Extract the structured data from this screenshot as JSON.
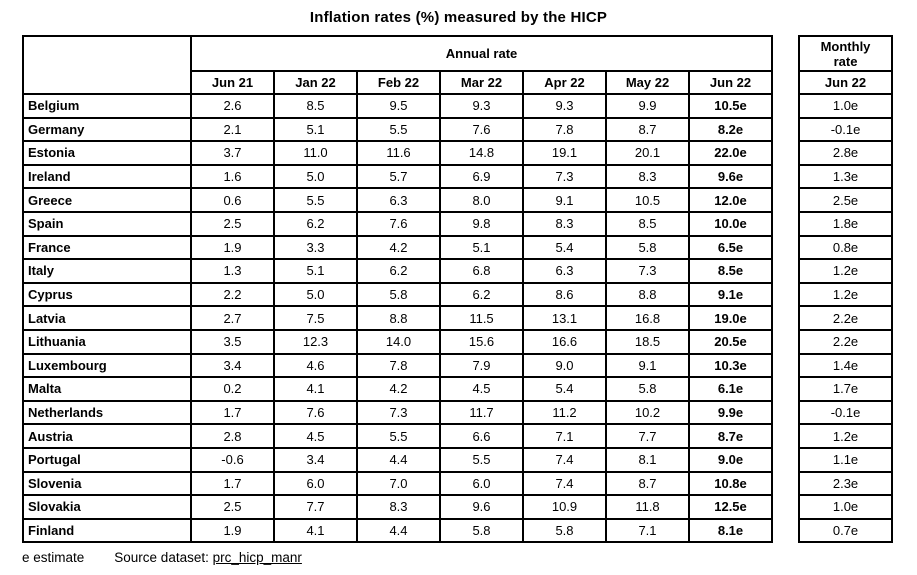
{
  "title": "Inflation rates (%) measured by the HICP",
  "chart_data": {
    "type": "table",
    "title": "Inflation rates (%) measured by the HICP",
    "annual_group_label": "Annual rate",
    "monthly_group_label": "Monthly rate",
    "annual_columns": [
      "Jun 21",
      "Jan 22",
      "Feb 22",
      "Mar 22",
      "Apr 22",
      "May 22",
      "Jun 22"
    ],
    "monthly_column": "Jun 22",
    "rows": [
      {
        "country": "Belgium",
        "annual": [
          "2.6",
          "8.5",
          "9.5",
          "9.3",
          "9.3",
          "9.9",
          "10.5e"
        ],
        "monthly": "1.0e"
      },
      {
        "country": "Germany",
        "annual": [
          "2.1",
          "5.1",
          "5.5",
          "7.6",
          "7.8",
          "8.7",
          "8.2e"
        ],
        "monthly": "-0.1e"
      },
      {
        "country": "Estonia",
        "annual": [
          "3.7",
          "11.0",
          "11.6",
          "14.8",
          "19.1",
          "20.1",
          "22.0e"
        ],
        "monthly": "2.8e"
      },
      {
        "country": "Ireland",
        "annual": [
          "1.6",
          "5.0",
          "5.7",
          "6.9",
          "7.3",
          "8.3",
          "9.6e"
        ],
        "monthly": "1.3e"
      },
      {
        "country": "Greece",
        "annual": [
          "0.6",
          "5.5",
          "6.3",
          "8.0",
          "9.1",
          "10.5",
          "12.0e"
        ],
        "monthly": "2.5e"
      },
      {
        "country": "Spain",
        "annual": [
          "2.5",
          "6.2",
          "7.6",
          "9.8",
          "8.3",
          "8.5",
          "10.0e"
        ],
        "monthly": "1.8e"
      },
      {
        "country": "France",
        "annual": [
          "1.9",
          "3.3",
          "4.2",
          "5.1",
          "5.4",
          "5.8",
          "6.5e"
        ],
        "monthly": "0.8e"
      },
      {
        "country": "Italy",
        "annual": [
          "1.3",
          "5.1",
          "6.2",
          "6.8",
          "6.3",
          "7.3",
          "8.5e"
        ],
        "monthly": "1.2e"
      },
      {
        "country": "Cyprus",
        "annual": [
          "2.2",
          "5.0",
          "5.8",
          "6.2",
          "8.6",
          "8.8",
          "9.1e"
        ],
        "monthly": "1.2e"
      },
      {
        "country": "Latvia",
        "annual": [
          "2.7",
          "7.5",
          "8.8",
          "11.5",
          "13.1",
          "16.8",
          "19.0e"
        ],
        "monthly": "2.2e"
      },
      {
        "country": "Lithuania",
        "annual": [
          "3.5",
          "12.3",
          "14.0",
          "15.6",
          "16.6",
          "18.5",
          "20.5e"
        ],
        "monthly": "2.2e"
      },
      {
        "country": "Luxembourg",
        "annual": [
          "3.4",
          "4.6",
          "7.8",
          "7.9",
          "9.0",
          "9.1",
          "10.3e"
        ],
        "monthly": "1.4e"
      },
      {
        "country": "Malta",
        "annual": [
          "0.2",
          "4.1",
          "4.2",
          "4.5",
          "5.4",
          "5.8",
          "6.1e"
        ],
        "monthly": "1.7e"
      },
      {
        "country": "Netherlands",
        "annual": [
          "1.7",
          "7.6",
          "7.3",
          "11.7",
          "11.2",
          "10.2",
          "9.9e"
        ],
        "monthly": "-0.1e"
      },
      {
        "country": "Austria",
        "annual": [
          "2.8",
          "4.5",
          "5.5",
          "6.6",
          "7.1",
          "7.7",
          "8.7e"
        ],
        "monthly": "1.2e"
      },
      {
        "country": "Portugal",
        "annual": [
          "-0.6",
          "3.4",
          "4.4",
          "5.5",
          "7.4",
          "8.1",
          "9.0e"
        ],
        "monthly": "1.1e"
      },
      {
        "country": "Slovenia",
        "annual": [
          "1.7",
          "6.0",
          "7.0",
          "6.0",
          "7.4",
          "8.7",
          "10.8e"
        ],
        "monthly": "2.3e"
      },
      {
        "country": "Slovakia",
        "annual": [
          "2.5",
          "7.7",
          "8.3",
          "9.6",
          "10.9",
          "11.8",
          "12.5e"
        ],
        "monthly": "1.0e"
      },
      {
        "country": "Finland",
        "annual": [
          "1.9",
          "4.1",
          "4.4",
          "5.8",
          "5.8",
          "7.1",
          "8.1e"
        ],
        "monthly": "0.7e"
      }
    ]
  },
  "footer": {
    "note": "e estimate",
    "source_label": "Source dataset:",
    "source_link": "prc_hicp_manr"
  }
}
